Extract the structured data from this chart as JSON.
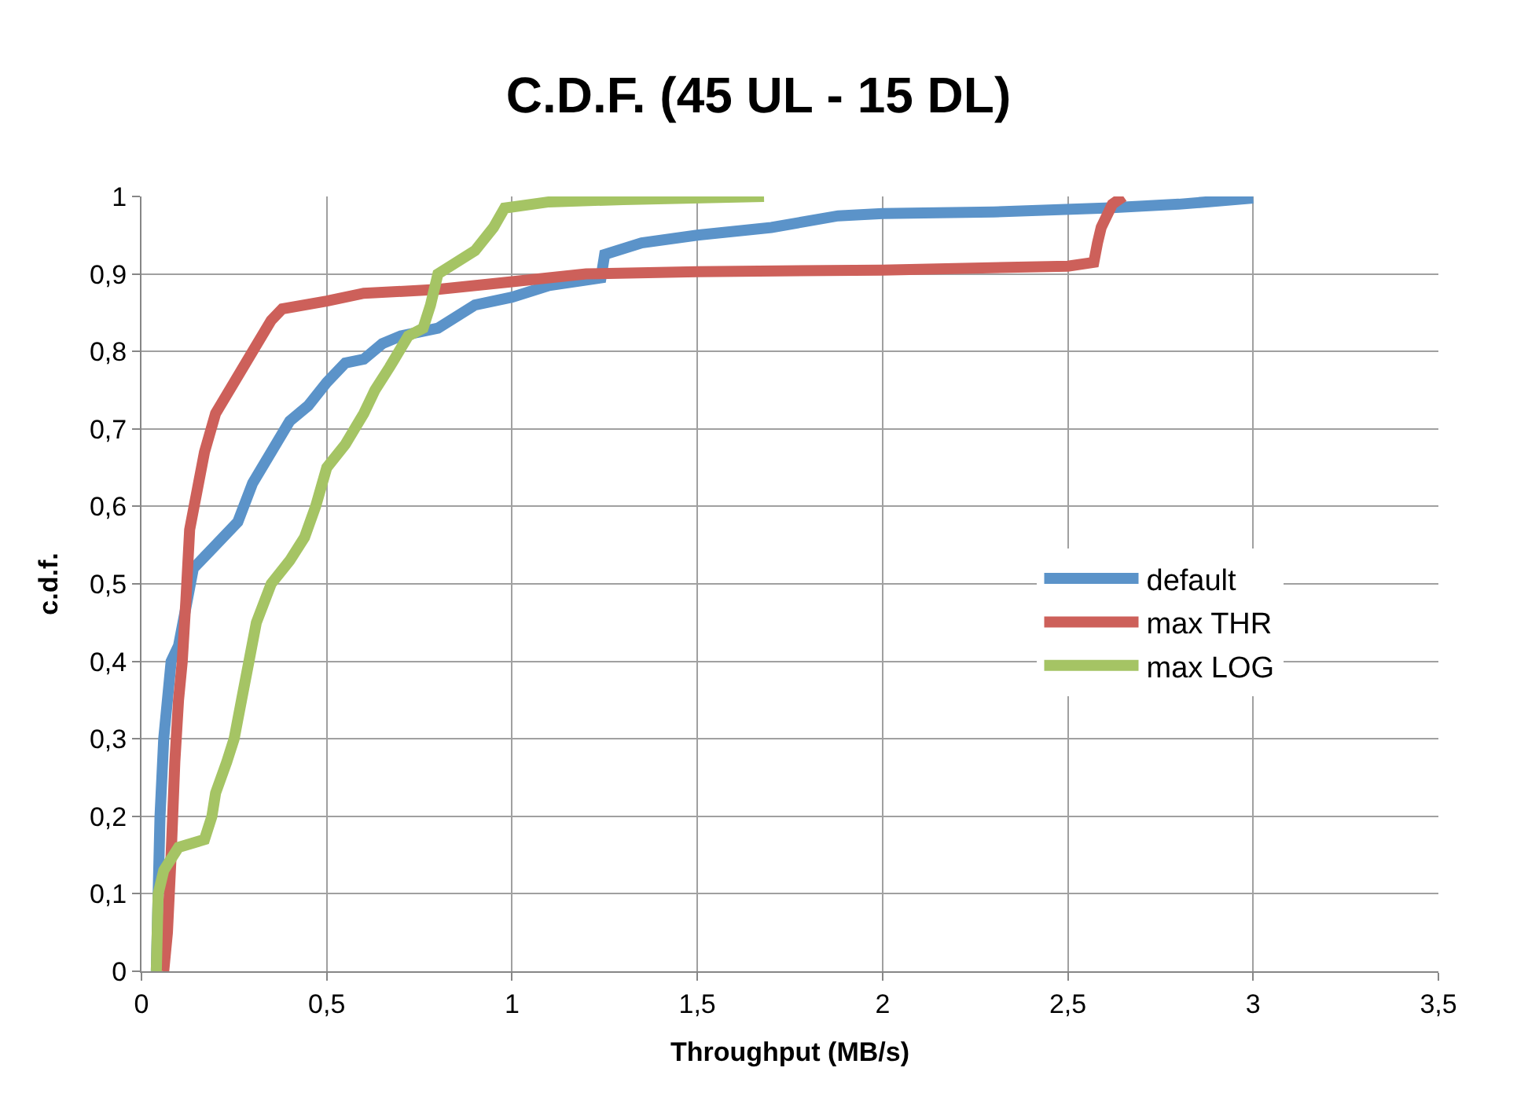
{
  "chart_data": {
    "type": "line",
    "title": "C.D.F. (45 UL - 15 DL)",
    "xlabel": "Throughput (MB/s)",
    "ylabel": "c.d.f.",
    "xlim": [
      0,
      3.5
    ],
    "xticks": [
      0,
      {
        "value": 0.5,
        "label": "0,5"
      },
      1,
      {
        "value": 1.5,
        "label": "1,5"
      },
      2,
      {
        "value": 2.5,
        "label": "2,5"
      },
      3,
      {
        "value": 3.5,
        "label": "3,5"
      }
    ],
    "ylim": [
      0,
      1
    ],
    "yticks": [
      0,
      {
        "value": 0.1,
        "label": "0,1"
      },
      {
        "value": 0.2,
        "label": "0,2"
      },
      {
        "value": 0.3,
        "label": "0,3"
      },
      {
        "value": 0.4,
        "label": "0,4"
      },
      {
        "value": 0.5,
        "label": "0,5"
      },
      {
        "value": 0.6,
        "label": "0,6"
      },
      {
        "value": 0.7,
        "label": "0,7"
      },
      {
        "value": 0.8,
        "label": "0,8"
      },
      {
        "value": 0.9,
        "label": "0,9"
      },
      1
    ],
    "grid": true,
    "legend": "right",
    "marker": "none",
    "line_style": "solid",
    "series": [
      {
        "name": "default",
        "color": "#5b93c9",
        "x": [
          0.04,
          0.05,
          0.06,
          0.08,
          0.1,
          0.12,
          0.14,
          0.18,
          0.22,
          0.26,
          0.3,
          0.35,
          0.4,
          0.45,
          0.5,
          0.55,
          0.6,
          0.65,
          0.7,
          0.8,
          0.9,
          1.0,
          1.1,
          1.24,
          1.25,
          1.35,
          1.5,
          1.7,
          1.88,
          2.0,
          2.3,
          2.6,
          2.8,
          3.0
        ],
        "values": [
          0,
          0.2,
          0.3,
          0.4,
          0.42,
          0.47,
          0.52,
          0.54,
          0.56,
          0.58,
          0.63,
          0.67,
          0.71,
          0.73,
          0.76,
          0.785,
          0.79,
          0.81,
          0.82,
          0.83,
          0.86,
          0.87,
          0.885,
          0.895,
          0.925,
          0.94,
          0.95,
          0.96,
          0.975,
          0.978,
          0.98,
          0.985,
          0.99,
          0.998
        ]
      },
      {
        "name": "max THR",
        "color": "#cd605a",
        "x": [
          0.06,
          0.07,
          0.08,
          0.09,
          0.1,
          0.11,
          0.12,
          0.13,
          0.15,
          0.17,
          0.2,
          0.25,
          0.3,
          0.35,
          0.38,
          0.5,
          0.6,
          0.8,
          1.0,
          1.2,
          1.5,
          2.0,
          2.5,
          2.57,
          2.58,
          2.59,
          2.62,
          2.65
        ],
        "values": [
          0,
          0.05,
          0.15,
          0.27,
          0.35,
          0.4,
          0.48,
          0.57,
          0.62,
          0.67,
          0.72,
          0.76,
          0.8,
          0.84,
          0.855,
          0.865,
          0.875,
          0.88,
          0.89,
          0.9,
          0.903,
          0.905,
          0.91,
          0.915,
          0.94,
          0.96,
          0.99,
          1.0
        ]
      },
      {
        "name": "max LOG",
        "color": "#a5c464",
        "x": [
          0.04,
          0.045,
          0.06,
          0.1,
          0.17,
          0.19,
          0.2,
          0.23,
          0.25,
          0.27,
          0.29,
          0.31,
          0.35,
          0.4,
          0.44,
          0.47,
          0.5,
          0.55,
          0.6,
          0.63,
          0.67,
          0.72,
          0.76,
          0.78,
          0.8,
          0.9,
          0.95,
          0.98,
          1.1,
          1.3,
          1.68
        ],
        "values": [
          0,
          0.1,
          0.13,
          0.16,
          0.17,
          0.2,
          0.23,
          0.27,
          0.3,
          0.35,
          0.4,
          0.45,
          0.5,
          0.53,
          0.56,
          0.6,
          0.65,
          0.68,
          0.72,
          0.75,
          0.78,
          0.82,
          0.83,
          0.86,
          0.9,
          0.93,
          0.96,
          0.985,
          0.993,
          0.996,
          1.0
        ]
      }
    ]
  }
}
